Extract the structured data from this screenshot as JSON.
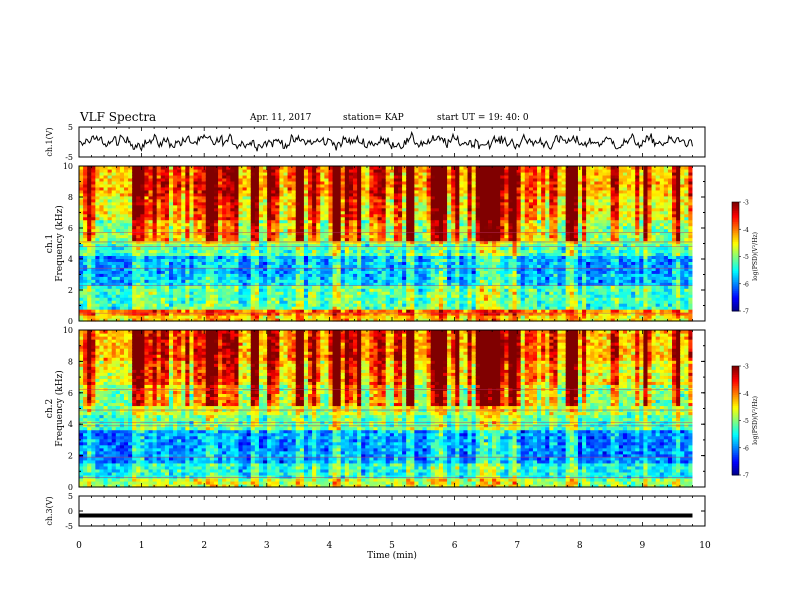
{
  "header": {
    "title": "VLF Spectra",
    "date": "Apr. 11, 2017",
    "station": "station= KAP",
    "start": "start  UT  =   19: 40: 0"
  },
  "colorbar": {
    "label": "log(PSD)(V²/Hz)",
    "ticks": [
      "-3",
      "-4",
      "-5",
      "-6",
      "-7"
    ]
  },
  "chart_data": [
    {
      "type": "line",
      "panel": "ch.1 waveform",
      "ylabel": "ch.1(V)",
      "ylim": [
        -5,
        5
      ],
      "yticks": [
        "5",
        "-5"
      ],
      "xlim": [
        0,
        10
      ],
      "trace_span_min": [
        0,
        9.8
      ],
      "baseline": 0,
      "amplitude_approx": 2,
      "color": "#000000"
    },
    {
      "type": "heatmap",
      "panel": "ch.1 spectrogram",
      "ylabel_line1": "ch.1",
      "ylabel_line2": "Frequency (kHz)",
      "ylim": [
        0,
        10
      ],
      "yticks": [
        "0",
        "2",
        "4",
        "6",
        "8",
        "10"
      ],
      "xlim": [
        0,
        10
      ],
      "colormap": "jet",
      "clim": [
        -7,
        -3
      ],
      "bands": [
        {
          "f": [
            0,
            0.3
          ],
          "v": -4.6
        },
        {
          "f": [
            0.3,
            0.7
          ],
          "v": -4.2
        },
        {
          "f": [
            0.7,
            2.2
          ],
          "v": -5.4
        },
        {
          "f": [
            2.2,
            3.0
          ],
          "v": -5.9
        },
        {
          "f": [
            3.0,
            4.2
          ],
          "v": -6.0
        },
        {
          "f": [
            4.2,
            5.0
          ],
          "v": -5.4
        },
        {
          "f": [
            5.0,
            6.5
          ],
          "v": -5.0
        },
        {
          "f": [
            6.5,
            8.0
          ],
          "v": -4.6
        },
        {
          "f": [
            8.0,
            10.0
          ],
          "v": -4.3
        }
      ],
      "lines_khz": [
        0.5,
        2.3,
        3.4,
        4.8,
        5.1,
        5.7
      ]
    },
    {
      "type": "heatmap",
      "panel": "ch.2 spectrogram",
      "ylabel_line1": "ch.2",
      "ylabel_line2": "Frequency (kHz)",
      "ylim": [
        0,
        10
      ],
      "yticks": [
        "0",
        "2",
        "4",
        "6",
        "8",
        "10"
      ],
      "xlim": [
        0,
        10
      ],
      "colormap": "jet",
      "clim": [
        -7,
        -3
      ],
      "bands": [
        {
          "f": [
            0,
            0.5
          ],
          "v": -5.0
        },
        {
          "f": [
            0.5,
            1.5
          ],
          "v": -5.6
        },
        {
          "f": [
            1.5,
            3.5
          ],
          "v": -6.1
        },
        {
          "f": [
            3.5,
            4.5
          ],
          "v": -5.3
        },
        {
          "f": [
            4.5,
            6.5
          ],
          "v": -5.0
        },
        {
          "f": [
            6.5,
            8.0
          ],
          "v": -4.6
        },
        {
          "f": [
            8.0,
            10.0
          ],
          "v": -4.3
        }
      ],
      "lines_khz": [
        0.6,
        1.9,
        3.9,
        4.1,
        4.9,
        6.2
      ]
    },
    {
      "type": "line",
      "panel": "ch.3 waveform",
      "ylabel": "ch.3(V)",
      "ylim": [
        -5,
        5
      ],
      "yticks": [
        "5",
        "0",
        "-5"
      ],
      "xlim": [
        0,
        10
      ],
      "trace_span_min": [
        0,
        9.8
      ],
      "constant_value": -1.5,
      "color": "#000000"
    }
  ],
  "xaxis": {
    "label": "Time (min)",
    "ticks": [
      "0",
      "1",
      "2",
      "3",
      "4",
      "5",
      "6",
      "7",
      "8",
      "9",
      "10"
    ]
  }
}
